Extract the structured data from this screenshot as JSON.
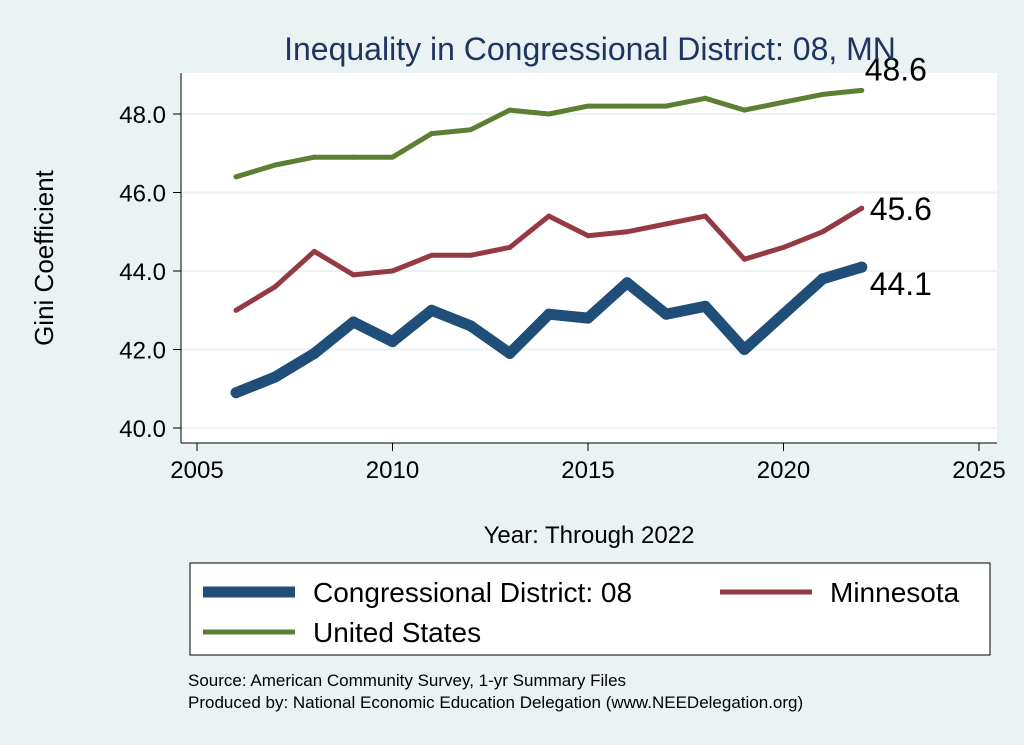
{
  "chart_data": {
    "type": "line",
    "title": "Inequality in Congressional District:  08, MN",
    "xlabel": "Year: Through 2022",
    "ylabel": "Gini Coefficient",
    "xlim": [
      2005,
      2025
    ],
    "ylim": [
      40.0,
      48.6
    ],
    "x_ticks": [
      2005,
      2010,
      2015,
      2020,
      2025
    ],
    "y_ticks": [
      "40.0",
      "42.0",
      "44.0",
      "46.0",
      "48.0"
    ],
    "grid": true,
    "x": [
      2006,
      2007,
      2008,
      2009,
      2010,
      2011,
      2012,
      2013,
      2014,
      2015,
      2016,
      2017,
      2018,
      2019,
      2020,
      2021,
      2022
    ],
    "series": [
      {
        "name": "Congressional District:  08",
        "color": "#1f4e79",
        "values": [
          40.9,
          41.3,
          41.9,
          42.7,
          42.2,
          43.0,
          42.6,
          41.9,
          42.9,
          42.8,
          43.7,
          42.9,
          43.1,
          42.0,
          42.9,
          43.8,
          44.1
        ],
        "end_label": "44.1"
      },
      {
        "name": "Minnesota",
        "color": "#953a42",
        "values": [
          43.0,
          43.6,
          44.5,
          43.9,
          44.0,
          44.4,
          44.4,
          44.6,
          45.4,
          44.9,
          45.0,
          45.2,
          45.4,
          44.3,
          44.6,
          45.0,
          45.6
        ],
        "end_label": "45.6"
      },
      {
        "name": "United States",
        "color": "#5c7f33",
        "values": [
          46.4,
          46.7,
          46.9,
          46.9,
          46.9,
          47.5,
          47.6,
          48.1,
          48.0,
          48.2,
          48.2,
          48.2,
          48.4,
          48.1,
          48.3,
          48.5,
          48.6
        ],
        "end_label": "48.6"
      }
    ],
    "legend": {
      "position": "bottom",
      "entries": [
        "Congressional District:  08",
        "Minnesota",
        "United States"
      ]
    },
    "notes": [
      "Source: American Community Survey, 1-yr Summary Files",
      "Produced by: National Economic Education Delegation (www.NEEDelegation.org)"
    ]
  }
}
